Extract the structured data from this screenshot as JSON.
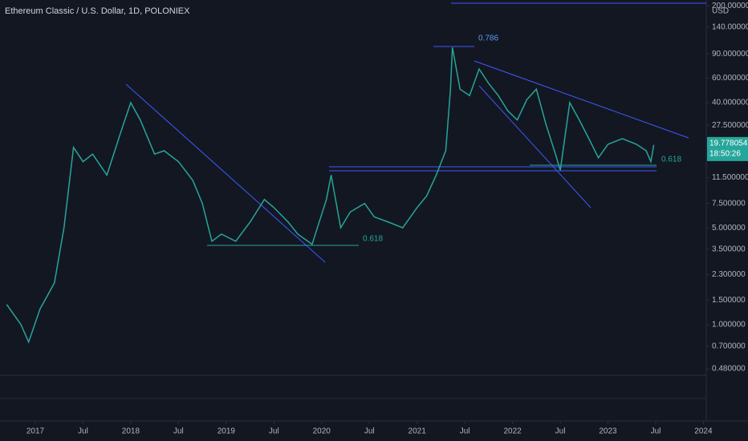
{
  "chart_data": {
    "type": "line",
    "title": "Ethereum Classic / U.S. Dollar, 1D, POLONIEX",
    "currency": "USD",
    "log_scale": true,
    "grid": false,
    "x": [
      2016.7,
      2016.85,
      2016.93,
      2017.05,
      2017.2,
      2017.3,
      2017.4,
      2017.5,
      2017.6,
      2017.75,
      2017.9,
      2018.0,
      2018.1,
      2018.25,
      2018.35,
      2018.5,
      2018.65,
      2018.75,
      2018.85,
      2018.95,
      2019.1,
      2019.25,
      2019.4,
      2019.5,
      2019.65,
      2019.75,
      2019.9,
      2020.05,
      2020.1,
      2020.2,
      2020.3,
      2020.45,
      2020.55,
      2020.7,
      2020.85,
      2021.0,
      2021.1,
      2021.2,
      2021.3,
      2021.35,
      2021.37,
      2021.45,
      2021.55,
      2021.65,
      2021.75,
      2021.85,
      2021.95,
      2022.05,
      2022.15,
      2022.25,
      2022.35,
      2022.45,
      2022.5,
      2022.6,
      2022.7,
      2022.8,
      2022.9,
      2023.0,
      2023.15,
      2023.3,
      2023.4,
      2023.45,
      2023.48
    ],
    "series": [
      {
        "name": "ETC/USD",
        "color": "#26a69a",
        "values": [
          1.4,
          1.0,
          0.75,
          1.3,
          2.0,
          5,
          19,
          15,
          17,
          12,
          25,
          40,
          30,
          17,
          18,
          15,
          11,
          7.5,
          4,
          4.5,
          4,
          5.5,
          8,
          7,
          5.5,
          4.5,
          3.8,
          8,
          12,
          5,
          6.5,
          7.5,
          6,
          5.5,
          5,
          7,
          8.5,
          12,
          18,
          50,
          100,
          50,
          45,
          70,
          55,
          45,
          35,
          30,
          42,
          50,
          28,
          17,
          13,
          40,
          30,
          22,
          16,
          20,
          22,
          20,
          18,
          15,
          19.8
        ]
      }
    ],
    "last_price": 19.778054,
    "countdown": "18:50:26",
    "annotations": [
      "0.786",
      "0.618",
      "0.618"
    ],
    "xlim": [
      2016.63,
      2024.03
    ],
    "xticks": [
      2017,
      {
        "value": 2017.5,
        "label": "Jul"
      },
      2018,
      {
        "value": 2018.5,
        "label": "Jul"
      },
      2019,
      {
        "value": 2019.5,
        "label": "Jul"
      },
      2020,
      {
        "value": 2020.5,
        "label": "Jul"
      },
      2021,
      {
        "value": 2021.5,
        "label": "Jul"
      },
      2022,
      {
        "value": 2022.5,
        "label": "Jul"
      },
      2023,
      {
        "value": 2023.5,
        "label": "Jul"
      },
      2024
    ],
    "ylim": [
      0.432,
      220
    ],
    "yticks": [
      {
        "value": 0.48,
        "label": "0.480000"
      },
      {
        "value": 0.7,
        "label": "0.700000"
      },
      {
        "value": 1,
        "label": "1.000000"
      },
      {
        "value": 1.5,
        "label": "1.500000"
      },
      {
        "value": 2.3,
        "label": "2.300000"
      },
      {
        "value": 3.5,
        "label": "3.500000"
      },
      {
        "value": 5,
        "label": "5.000000"
      },
      {
        "value": 7.5,
        "label": "7.500000"
      },
      {
        "value": 11.5,
        "label": "11.500000"
      },
      {
        "value": 27.5,
        "label": "27.500000"
      },
      {
        "value": 40,
        "label": "40.000000"
      },
      {
        "value": 60,
        "label": "60.000000"
      },
      {
        "value": 90,
        "label": "90.000000"
      },
      {
        "value": 140,
        "label": "140.000000"
      },
      {
        "value": 200,
        "label": "200.000000"
      }
    ]
  }
}
